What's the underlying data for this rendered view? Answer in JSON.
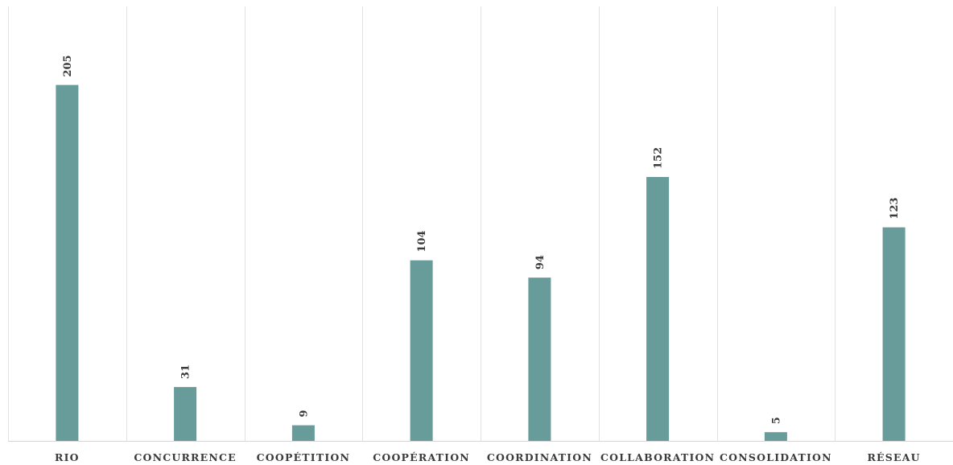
{
  "chart_data": {
    "type": "bar",
    "categories": [
      "RIO",
      "CONCURRENCE",
      "COOPÉTITION",
      "COOPÉRATION",
      "COORDINATION",
      "COLLABORATION",
      "CONSOLIDATION",
      "RÉSEAU"
    ],
    "values": [
      205,
      31,
      9,
      104,
      94,
      152,
      5,
      123
    ],
    "data_labels": [
      "205",
      "31",
      "9",
      "104",
      "94",
      "152",
      "5",
      "123"
    ],
    "title": "",
    "xlabel": "",
    "ylabel": "",
    "ylim": [
      0,
      210
    ],
    "grid": "vertical-category-separators",
    "legend": "none",
    "colors": {
      "bar": "#679c9a",
      "grid": "#e2e2e2",
      "axis": "#d4d4d4",
      "text": "#3b3b3b"
    }
  }
}
